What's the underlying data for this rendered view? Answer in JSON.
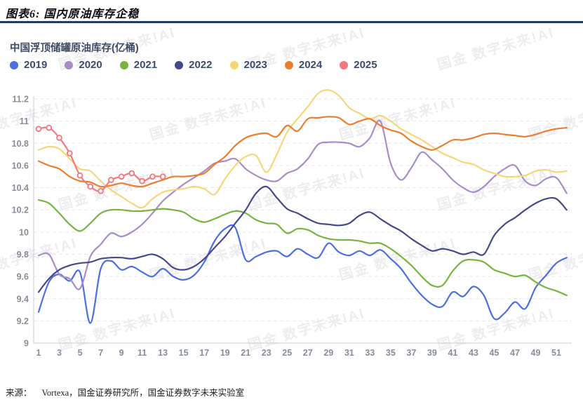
{
  "page": {
    "title": "图表6:  国内原油库存企稳",
    "source_label": "来源：",
    "source_text": "Vortexa，国金证券研究所，国金证券数字未来实验室",
    "watermark_text": "国金 数字未来!AI",
    "accent_rule_color": "#1e3a6e"
  },
  "chart_data": {
    "type": "line",
    "title": "中国浮顶储罐原油库存(亿桶)",
    "xlabel": "",
    "ylabel": "",
    "x_unit": "week",
    "x_range": [
      1,
      52
    ],
    "xticks": [
      1,
      3,
      5,
      7,
      9,
      11,
      13,
      15,
      17,
      19,
      21,
      23,
      25,
      27,
      29,
      31,
      33,
      35,
      37,
      39,
      41,
      43,
      45,
      47,
      49,
      51
    ],
    "yticks": [
      9,
      9.2,
      9.4,
      9.6,
      9.8,
      10,
      10.2,
      10.4,
      10.6,
      10.8,
      11,
      11.2
    ],
    "ylim": [
      9,
      11.2
    ],
    "grid": "dashed-horizontal",
    "legend_position": "top-left",
    "series": [
      {
        "name": "2019",
        "color": "#4B6FE0",
        "values": [
          9.28,
          9.55,
          9.62,
          9.56,
          9.64,
          9.18,
          9.67,
          9.74,
          9.66,
          9.69,
          9.64,
          9.6,
          9.67,
          9.6,
          9.57,
          9.61,
          9.73,
          9.92,
          10.03,
          10.04,
          9.75,
          9.78,
          9.82,
          9.83,
          9.78,
          9.85,
          9.8,
          9.77,
          9.9,
          9.82,
          9.79,
          9.83,
          9.79,
          9.84,
          9.76,
          9.67,
          9.54,
          9.43,
          9.35,
          9.33,
          9.46,
          9.42,
          9.51,
          9.43,
          9.22,
          9.27,
          9.37,
          9.31,
          9.5,
          9.61,
          9.72,
          9.77
        ]
      },
      {
        "name": "2020",
        "color": "#A78CC8",
        "values": [
          9.79,
          9.8,
          9.62,
          9.58,
          9.49,
          9.78,
          9.89,
          9.99,
          9.96,
          10.0,
          10.07,
          10.17,
          10.28,
          10.36,
          10.43,
          10.49,
          10.55,
          10.62,
          10.64,
          10.66,
          10.57,
          10.51,
          10.47,
          10.46,
          10.53,
          10.57,
          10.66,
          10.79,
          10.81,
          10.81,
          10.8,
          10.77,
          10.85,
          11.0,
          10.62,
          10.47,
          10.58,
          10.72,
          10.65,
          10.57,
          10.47,
          10.4,
          10.36,
          10.41,
          10.5,
          10.57,
          10.6,
          10.46,
          10.42,
          10.48,
          10.49,
          10.35
        ]
      },
      {
        "name": "2021",
        "color": "#79B33F",
        "values": [
          10.29,
          10.26,
          10.17,
          10.07,
          10.01,
          10.08,
          10.17,
          10.2,
          10.2,
          10.19,
          10.19,
          10.2,
          10.21,
          10.2,
          10.18,
          10.12,
          10.09,
          10.12,
          10.16,
          10.19,
          10.17,
          10.11,
          10.08,
          10.07,
          9.99,
          10.03,
          10.02,
          9.97,
          9.94,
          9.93,
          9.93,
          9.92,
          9.9,
          9.9,
          9.85,
          9.78,
          9.7,
          9.6,
          9.52,
          9.52,
          9.65,
          9.74,
          9.75,
          9.73,
          9.66,
          9.63,
          9.6,
          9.61,
          9.55,
          9.5,
          9.47,
          9.43
        ]
      },
      {
        "name": "2022",
        "color": "#45498A",
        "values": [
          9.46,
          9.58,
          9.66,
          9.7,
          9.72,
          9.73,
          9.76,
          9.77,
          9.77,
          9.76,
          9.78,
          9.8,
          9.76,
          9.68,
          9.66,
          9.69,
          9.76,
          9.86,
          9.96,
          10.08,
          10.2,
          10.35,
          10.41,
          10.31,
          10.21,
          10.17,
          10.12,
          10.08,
          10.07,
          10.06,
          10.08,
          10.15,
          10.18,
          10.12,
          10.06,
          10.01,
          9.94,
          9.88,
          9.83,
          9.85,
          9.83,
          9.8,
          9.82,
          9.8,
          9.97,
          10.07,
          10.13,
          10.2,
          10.26,
          10.3,
          10.3,
          10.2
        ]
      },
      {
        "name": "2023",
        "color": "#F7D57A",
        "values": [
          10.74,
          10.77,
          10.75,
          10.66,
          10.57,
          10.55,
          10.46,
          10.38,
          10.32,
          10.26,
          10.22,
          10.3,
          10.36,
          10.38,
          10.39,
          10.41,
          10.39,
          10.34,
          10.48,
          10.6,
          10.68,
          10.69,
          10.54,
          10.7,
          10.9,
          11.02,
          11.13,
          11.25,
          11.28,
          11.23,
          11.12,
          11.07,
          11.02,
          11.05,
          11.0,
          10.93,
          10.88,
          10.83,
          10.77,
          10.71,
          10.67,
          10.63,
          10.61,
          10.56,
          10.53,
          10.5,
          10.5,
          10.51,
          10.55,
          10.56,
          10.54,
          10.55
        ]
      },
      {
        "name": "2024",
        "color": "#EC7D2F",
        "values": [
          10.64,
          10.6,
          10.57,
          10.5,
          10.46,
          10.45,
          10.41,
          10.42,
          10.44,
          10.42,
          10.41,
          10.44,
          10.47,
          10.5,
          10.5,
          10.51,
          10.53,
          10.61,
          10.68,
          10.78,
          10.85,
          10.88,
          10.89,
          10.86,
          10.96,
          10.91,
          11.02,
          11.03,
          11.04,
          11.03,
          10.97,
          11.0,
          11.02,
          10.96,
          10.92,
          10.89,
          10.82,
          10.77,
          10.74,
          10.78,
          10.83,
          10.83,
          10.85,
          10.88,
          10.89,
          10.88,
          10.87,
          10.86,
          10.88,
          10.91,
          10.93,
          10.94
        ]
      },
      {
        "name": "2025",
        "color": "#F3797E",
        "markers": true,
        "values": [
          10.93,
          10.94,
          10.85,
          10.71,
          10.51,
          10.41,
          10.37,
          10.47,
          10.5,
          10.53,
          10.46,
          10.5,
          10.5
        ]
      }
    ]
  }
}
